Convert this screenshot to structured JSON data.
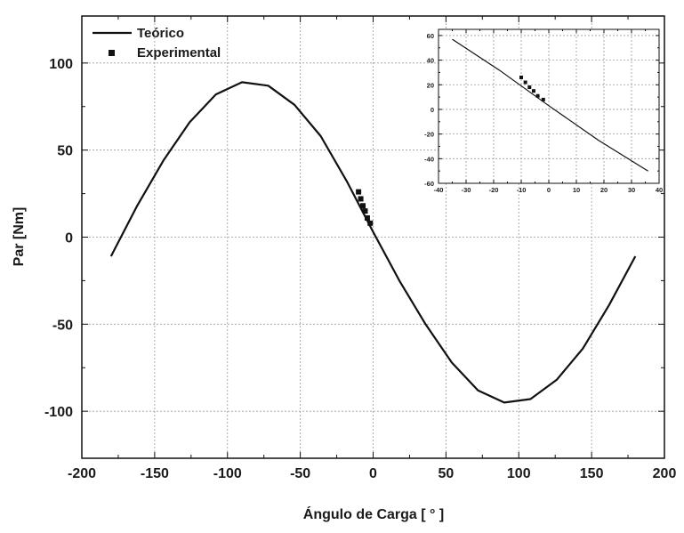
{
  "chart_data": [
    {
      "type": "line",
      "title": "",
      "xlabel": "Ángulo de Carga [ ° ]",
      "ylabel": "Par [Nm]",
      "xlim": [
        -200,
        200
      ],
      "ylim": [
        -127,
        127
      ],
      "xticks": [
        -200,
        -150,
        -100,
        -50,
        0,
        50,
        100,
        150,
        200
      ],
      "yticks": [
        -100,
        -50,
        0,
        50,
        100
      ],
      "grid": true,
      "legend_position": "top-left",
      "series": [
        {
          "name": "Teórico",
          "style": "line",
          "color": "#111111",
          "x": [
            -180,
            -162,
            -144,
            -126,
            -108,
            -90,
            -72,
            -54,
            -36,
            -18,
            0,
            18,
            36,
            54,
            72,
            90,
            108,
            126,
            144,
            162,
            180
          ],
          "y": [
            -11,
            18,
            44,
            66,
            82,
            89,
            87,
            76,
            58,
            32,
            3,
            -25,
            -50,
            -72,
            -88,
            -95,
            -93,
            -82,
            -64,
            -39,
            -11
          ]
        },
        {
          "name": "Experimental",
          "style": "scatter",
          "color": "#111111",
          "x": [
            -10,
            -8.5,
            -7,
            -5.5,
            -4,
            -2
          ],
          "y": [
            26,
            22,
            18,
            15,
            11,
            8
          ]
        }
      ]
    },
    {
      "type": "line",
      "title": "",
      "xlabel": "",
      "ylabel": "",
      "xlim": [
        -40,
        40
      ],
      "ylim": [
        -60,
        65
      ],
      "xticks": [
        -40,
        -30,
        -20,
        -10,
        0,
        10,
        20,
        30,
        40
      ],
      "yticks": [
        -60,
        -40,
        -20,
        0,
        20,
        40,
        60
      ],
      "grid": true,
      "series": [
        {
          "name": "Teórico",
          "style": "line",
          "color": "#111111",
          "x": [
            -35,
            -18,
            0,
            18,
            36
          ],
          "y": [
            57,
            32,
            3,
            -25,
            -50
          ]
        },
        {
          "name": "Experimental",
          "style": "scatter",
          "color": "#111111",
          "x": [
            -10,
            -8.5,
            -7,
            -5.5,
            -4,
            -2
          ],
          "y": [
            26,
            22,
            18,
            15,
            11,
            8
          ]
        }
      ]
    }
  ]
}
